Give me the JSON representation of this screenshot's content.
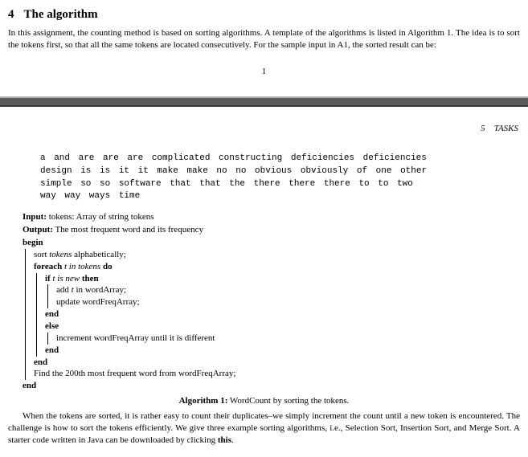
{
  "section": {
    "number": "4",
    "title": "The algorithm",
    "intro": "In this assignment, the counting method is based on sorting algorithms. A template of the algorithms is listed in Algorithm 1. The idea is to sort the tokens first, so that all the same tokens are located consecutively. For the sample input in A1, the sorted result can be:"
  },
  "page_number_prev": "1",
  "running_head": "5 TASKS",
  "sorted_tokens": {
    "l1": "a and are are are complicated constructing deficiencies deficiencies",
    "l2": "design is is it it make make no no obvious obviously of one other",
    "l3": "simple so so software that that the there there there to to two",
    "l4": "way way ways time"
  },
  "algorithm": {
    "input_label": "Input:",
    "input_text": " tokens: Array of string tokens",
    "output_label": "Output:",
    "output_text": " The most frequent word and its frequency",
    "kw_begin": "begin",
    "l_sort_a": "sort ",
    "l_sort_b": "tokens",
    "l_sort_c": " alphabetically;",
    "kw_foreach": "foreach ",
    "fe_var": " t in tokens ",
    "kw_do": "do",
    "kw_if": "if ",
    "if_cond": "t is new ",
    "kw_then": "then",
    "l_add_a": "add ",
    "l_add_b": "t",
    "l_add_c": " in wordArray;",
    "l_update": "update wordFreqArray;",
    "kw_end1": "end",
    "kw_else": "else",
    "l_incr": "increment wordFreqArray until it is different",
    "kw_end2": "end",
    "kw_end3": "end",
    "l_find": "Find the 200th most frequent word from wordFreqArray;",
    "kw_end4": "end",
    "caption_b": "Algorithm 1:",
    "caption_t": " WordCount by sorting the tokens."
  },
  "closing_a": "When the tokens are sorted, it is rather easy to count their duplicates–we simply increment the count until a new token is encountered. The challenge is how to sort the tokens efficiently. We give three example sorting algorithms, i.e., Selection Sort, Insertion Sort, and Merge Sort. A starter code written in Java can be downloaded by clicking ",
  "closing_b": "this",
  "closing_c": "."
}
